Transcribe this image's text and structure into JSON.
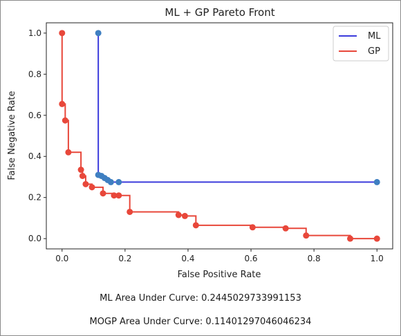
{
  "chart_data": {
    "type": "line",
    "title": "ML + GP Pareto Front",
    "xlabel": "False Positive Rate",
    "ylabel": "False Negative Rate",
    "xlim": [
      -0.05,
      1.05
    ],
    "ylim": [
      -0.05,
      1.05
    ],
    "xticks": [
      "0.0",
      "0.2",
      "0.4",
      "0.6",
      "0.8",
      "1.0"
    ],
    "yticks": [
      "0.0",
      "0.2",
      "0.4",
      "0.6",
      "0.8",
      "1.0"
    ],
    "legend": "top-right",
    "series": [
      {
        "name": "ML",
        "line_color": "#3b3bdc",
        "marker_color": "#3f7fc1",
        "step": "post",
        "x": [
          0.115,
          0.115,
          0.125,
          0.135,
          0.145,
          0.155,
          0.18,
          1.0
        ],
        "y": [
          1.0,
          0.31,
          0.305,
          0.295,
          0.285,
          0.275,
          0.275,
          0.275
        ]
      },
      {
        "name": "GP",
        "line_color": "#e8473a",
        "marker_color": "#e8473a",
        "step": "post",
        "x": [
          0.0,
          0.0,
          0.01,
          0.02,
          0.06,
          0.065,
          0.075,
          0.095,
          0.13,
          0.165,
          0.18,
          0.215,
          0.37,
          0.39,
          0.425,
          0.605,
          0.71,
          0.775,
          0.915,
          1.0
        ],
        "y": [
          1.0,
          0.655,
          0.575,
          0.42,
          0.335,
          0.305,
          0.265,
          0.25,
          0.22,
          0.21,
          0.21,
          0.13,
          0.115,
          0.11,
          0.065,
          0.055,
          0.05,
          0.015,
          0.0,
          0.0
        ]
      }
    ]
  },
  "notes": {
    "ml_auc": "ML Area Under Curve: 0.2445029733991153",
    "mogp_auc": "MOGP Area Under Curve: 0.11401297046046234"
  }
}
